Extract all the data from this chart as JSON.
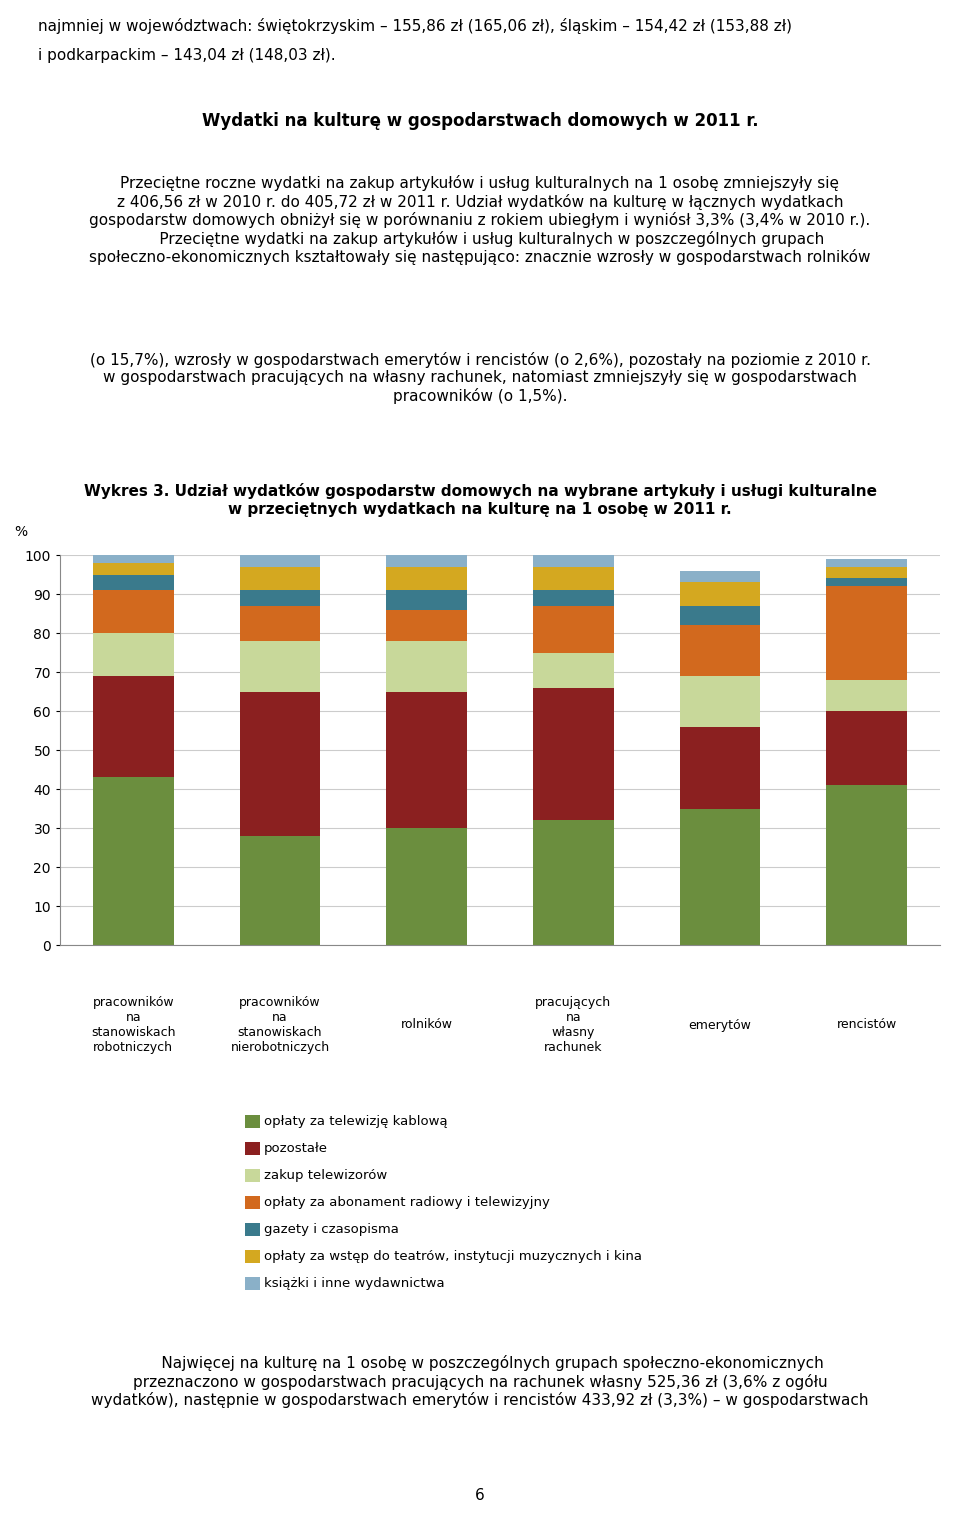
{
  "title_line1": "Wykres 3. Udział wydatków gospodarstw domowych na wybrane artykuły i usługi kulturalne",
  "title_line2": "w przeciętnych wydatkach na kulturę na 1 osobę w 2011 r.",
  "ylabel": "%",
  "ylim": [
    0,
    100
  ],
  "yticks": [
    0,
    10,
    20,
    30,
    40,
    50,
    60,
    70,
    80,
    90,
    100
  ],
  "legend_labels": [
    "opłaty za telewizję kablową",
    "pozostałe",
    "zakup telewizorów",
    "opłaty za abonament radiowy i telewizyjny",
    "gazety i czasopisma",
    "opłaty za wstęp do teatrów, instytucji muzycznych i kina",
    "książki i inne wydawnictwa"
  ],
  "colors": [
    "#6b8e3e",
    "#8b2020",
    "#c8d89a",
    "#d2691e",
    "#3a7a8c",
    "#d4a820",
    "#8ab0c8"
  ],
  "data": [
    [
      43,
      26,
      11,
      11,
      4,
      3,
      2
    ],
    [
      28,
      37,
      13,
      9,
      4,
      6,
      3
    ],
    [
      30,
      35,
      13,
      8,
      5,
      6,
      3
    ],
    [
      32,
      34,
      9,
      12,
      4,
      6,
      3
    ],
    [
      35,
      21,
      13,
      13,
      5,
      6,
      3
    ],
    [
      41,
      19,
      8,
      24,
      2,
      3,
      2
    ]
  ],
  "x_labels": [
    "pracowników\nna\nstanowiskach\nrobotniczych",
    "pracowników\nna\nstanowiskach\nnierobotniczych",
    "rolników",
    "pracujących\nna\nwłasny\nrachunek",
    "emerytów",
    "rencistów"
  ],
  "top_text1": "najmniej w województwach: świętokrzyskim – 155,86 zł (165,06 zł), śląskim – 154,42 zł (153,88 zł)",
  "top_text2": "i podkarpackim – 143,04 zł (148,03 zł).",
  "section_heading": "Wydatki na kulturę w gospodarstwach domowych w 2011 r.",
  "body1_lines": [
    "Przeciętne roczne wydatki na zakup artykułów i usług kulturalnych na 1 osobę zmniejszyły się",
    "z 406,56 zł w 2010 r. do 405,72 zł w 2011 r. Udział wydatków na kulturę w łącznych wydatkach",
    "gospodarstw domowych obniżył się w porównaniu z rokiem ubiegłym i wyniósł 3,3% (3,4% w 2010 r.).",
    "     Przeciętne wydatki na zakup artykułów i usług kulturalnych w poszczególnych grupach",
    "społeczno-ekonomicznych kształtowały się następująco: znacznie wzrosły w gospodarstwach rolników"
  ],
  "body2_lines": [
    "(o 15,7%), wzrosły w gospodarstwach emerytów i rencistów (o 2,6%), pozostały na poziomie z 2010 r.",
    "w gospodarstwach pracujących na własny rachunek, natomiast zmniejszyły się w gospodarstwach",
    "pracowników (o 1,5%)."
  ],
  "bottom_lines": [
    "     Najwięcej na kulturę na 1 osobę w poszczególnych grupach społeczno-ekonomicznych",
    "przeznaczono w gospodarstwach pracujących na rachunek własny 525,36 zł (3,6% z ogółu",
    "wydatków), następnie w gospodarstwach emerytów i rencistów 433,92 zł (3,3%) – w gospodarstwach"
  ],
  "page_number": "6",
  "background_color": "#ffffff",
  "grid_color": "#cccccc",
  "bar_width": 0.55
}
